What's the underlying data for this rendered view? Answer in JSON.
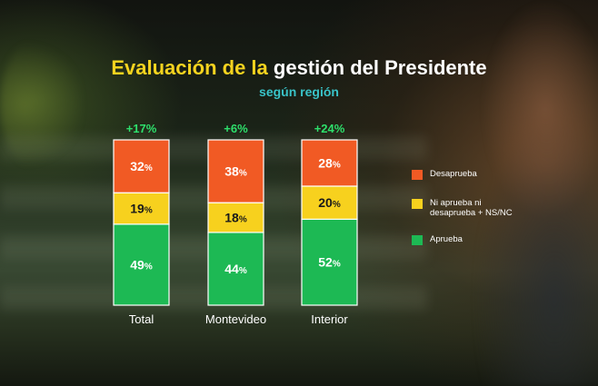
{
  "chart_data": {
    "type": "bar",
    "stacked": true,
    "title_part1": "Evaluación de la",
    "title_part2": "gestión del Presidente",
    "subtitle": "según región",
    "categories": [
      "Total",
      "Montevideo",
      "Interior"
    ],
    "net_labels": [
      "+17%",
      "+6%",
      "+24%"
    ],
    "series": [
      {
        "name": "Aprueba",
        "color": "#1db954",
        "values": [
          49,
          44,
          52
        ]
      },
      {
        "name": "Ni aprueba ni desaprueba + NS/NC",
        "color": "#f7d11e",
        "values": [
          19,
          18,
          20
        ]
      },
      {
        "name": "Desaprueba",
        "color": "#f15a24",
        "values": [
          32,
          38,
          28
        ]
      }
    ],
    "legend": [
      "Desaprueba",
      "Ni aprueba ni desaprueba + NS/NC",
      "Aprueba"
    ],
    "legend_colors": [
      "#f15a24",
      "#f7d11e",
      "#1db954"
    ],
    "ylim": [
      0,
      100
    ],
    "net_color": "#2ee06c"
  }
}
